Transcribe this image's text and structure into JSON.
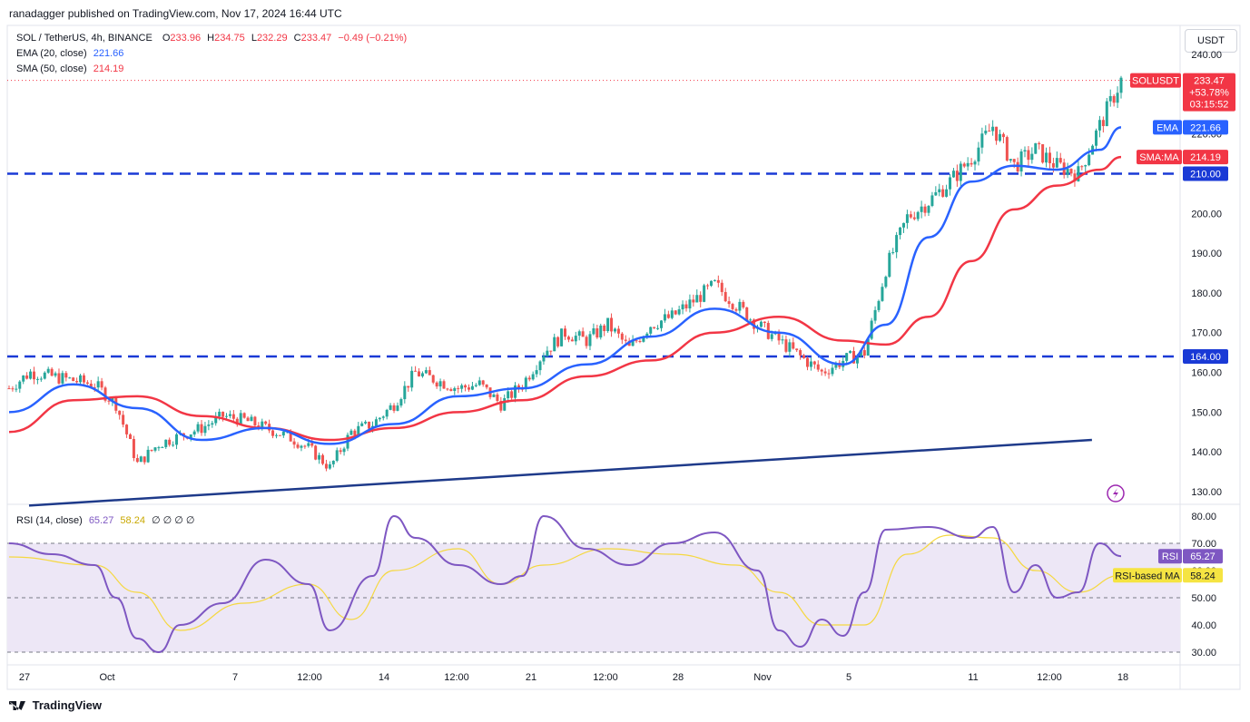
{
  "header": {
    "published": "ranadagger published on TradingView.com, Nov 17, 2024 16:44 UTC",
    "symbol": "SOL / TetherUS, 4h, BINANCE",
    "open_label": "O",
    "open": "233.96",
    "high_label": "H",
    "high": "234.75",
    "low_label": "L",
    "low": "232.29",
    "close_label": "C",
    "close": "233.47",
    "change": "−0.49 (−0.21%)"
  },
  "indicators": {
    "ema_label": "EMA (20, close)",
    "ema_value": "221.66",
    "sma_label": "SMA (50, close)",
    "sma_value": "214.19",
    "rsi_label": "RSI (14, close)",
    "rsi_value": "65.27",
    "rsi_ma_value": "58.24",
    "rsi_extra": "∅ ∅ ∅ ∅"
  },
  "currency": "USDT",
  "price_tags": {
    "symbol": "SOLUSDT",
    "price": "233.47",
    "change": "+53.78%",
    "countdown": "03:15:52",
    "ema_tag": "EMA",
    "ema": "221.66",
    "sma_tag": "SMA:MA",
    "sma": "214.19",
    "level_high": "210.00",
    "level_low": "164.00",
    "rsi_tag": "RSI",
    "rsi": "65.27",
    "rsi_ma_tag": "RSI-based MA",
    "rsi_ma": "58.24"
  },
  "footer": {
    "brand": "TradingView"
  },
  "colors": {
    "candle_up": "#26a69a",
    "candle_down": "#ef5350",
    "ema": "#2962ff",
    "sma": "#f23645",
    "level_line": "#1a3ad6",
    "trendline": "#1e3a8a",
    "rsi": "#7e57c2",
    "rsi_ma": "#f5d840",
    "rsi_band": "#ede7f6"
  },
  "chart_data": {
    "type": "line",
    "price_axis": {
      "ticks": [
        130,
        140,
        150,
        160,
        170,
        180,
        190,
        200,
        210,
        220,
        240
      ],
      "range": [
        126,
        243
      ]
    },
    "time_axis": {
      "labels": [
        "27",
        "Oct",
        "7",
        "12:00",
        "14",
        "12:00",
        "21",
        "12:00",
        "28",
        "Nov",
        "5",
        "11",
        "12:00",
        "18"
      ]
    },
    "horizontal_levels": [
      210,
      164
    ],
    "trendline": {
      "from": [
        "Sep 26",
        126.5
      ],
      "to": [
        "Nov 15",
        143
      ]
    },
    "series": [
      {
        "name": "SOL / TetherUS",
        "x": [
          "Sep 26",
          "Sep 27",
          "Sep 28",
          "Sep 29",
          "Sep 30",
          "Oct 1",
          "Oct 2",
          "Oct 3",
          "Oct 4",
          "Oct 5",
          "Oct 6",
          "Oct 7",
          "Oct 8",
          "Oct 9",
          "Oct 10",
          "Oct 11",
          "Oct 12",
          "Oct 13",
          "Oct 14",
          "Oct 15",
          "Oct 16",
          "Oct 17",
          "Oct 18",
          "Oct 19",
          "Oct 20",
          "Oct 21",
          "Oct 22",
          "Oct 23",
          "Oct 24",
          "Oct 25",
          "Oct 26",
          "Oct 27",
          "Oct 28",
          "Oct 29",
          "Oct 30",
          "Oct 31",
          "Nov 1",
          "Nov 2",
          "Nov 3",
          "Nov 4",
          "Nov 5",
          "Nov 6",
          "Nov 7",
          "Nov 8",
          "Nov 9",
          "Nov 10",
          "Nov 11",
          "Nov 12",
          "Nov 13",
          "Nov 14",
          "Nov 15",
          "Nov 16",
          "Nov 17"
        ],
        "values": [
          156,
          160,
          159,
          158,
          157,
          152,
          137,
          142,
          144,
          146,
          149,
          148,
          146,
          144,
          141,
          136,
          145,
          147,
          152,
          160,
          158,
          156,
          157,
          152,
          157,
          165,
          170,
          168,
          172,
          166,
          172,
          174,
          178,
          182,
          177,
          172,
          168,
          164,
          160,
          163,
          165,
          186,
          199,
          203,
          208,
          214,
          222,
          212,
          216,
          212,
          210,
          222,
          233.47
        ]
      },
      {
        "name": "EMA (20, close)",
        "x": [
          "Sep 26",
          "Sep 29",
          "Oct 2",
          "Oct 5",
          "Oct 8",
          "Oct 11",
          "Oct 14",
          "Oct 17",
          "Oct 20",
          "Oct 23",
          "Oct 26",
          "Oct 29",
          "Nov 1",
          "Nov 4",
          "Nov 6",
          "Nov 8",
          "Nov 10",
          "Nov 12",
          "Nov 14",
          "Nov 16",
          "Nov 17"
        ],
        "values": [
          150,
          157,
          151,
          143,
          146,
          142,
          147,
          154,
          156,
          162,
          169,
          176,
          170,
          162,
          172,
          194,
          208,
          212,
          211,
          216,
          221.66
        ]
      },
      {
        "name": "SMA (50, close)",
        "x": [
          "Sep 26",
          "Sep 29",
          "Oct 2",
          "Oct 5",
          "Oct 8",
          "Oct 11",
          "Oct 14",
          "Oct 17",
          "Oct 20",
          "Oct 23",
          "Oct 26",
          "Oct 29",
          "Nov 1",
          "Nov 4",
          "Nov 6",
          "Nov 8",
          "Nov 10",
          "Nov 12",
          "Nov 14",
          "Nov 16",
          "Nov 17"
        ],
        "values": [
          145,
          153,
          154,
          149,
          146,
          143,
          146,
          150,
          153,
          159,
          163,
          170,
          174,
          168,
          167,
          174,
          188,
          201,
          207,
          211,
          214.19
        ]
      }
    ],
    "rsi": {
      "axis": {
        "ticks": [
          30,
          40,
          50,
          60,
          70,
          80
        ],
        "range": [
          27,
          83
        ]
      },
      "bands": [
        30,
        50,
        70
      ],
      "series": [
        {
          "name": "RSI (14, close)",
          "x": [
            "Sep 26",
            "Sep 28",
            "Sep 30",
            "Oct 1",
            "Oct 2",
            "Oct 3",
            "Oct 4",
            "Oct 6",
            "Oct 8",
            "Oct 10",
            "Oct 11",
            "Oct 13",
            "Oct 14",
            "Oct 15",
            "Oct 17",
            "Oct 19",
            "Oct 20",
            "Oct 21",
            "Oct 23",
            "Oct 25",
            "Oct 27",
            "Oct 29",
            "Oct 31",
            "Nov 1",
            "Nov 2",
            "Nov 3",
            "Nov 4",
            "Nov 5",
            "Nov 6",
            "Nov 8",
            "Nov 10",
            "Nov 11",
            "Nov 12",
            "Nov 13",
            "Nov 14",
            "Nov 15",
            "Nov 16",
            "Nov 17"
          ],
          "values": [
            70,
            66,
            62,
            50,
            35,
            30,
            40,
            48,
            64,
            55,
            38,
            58,
            80,
            72,
            62,
            55,
            58,
            80,
            68,
            62,
            70,
            74,
            60,
            38,
            32,
            42,
            36,
            52,
            75,
            76,
            72,
            76,
            52,
            62,
            50,
            52,
            70,
            65.27
          ]
        },
        {
          "name": "RSI-based MA",
          "x": [
            "Sep 26",
            "Sep 30",
            "Oct 2",
            "Oct 4",
            "Oct 7",
            "Oct 10",
            "Oct 12",
            "Oct 14",
            "Oct 17",
            "Oct 19",
            "Oct 21",
            "Oct 24",
            "Oct 27",
            "Oct 30",
            "Nov 1",
            "Nov 3",
            "Nov 5",
            "Nov 7",
            "Nov 9",
            "Nov 11",
            "Nov 13",
            "Nov 15",
            "Nov 17"
          ],
          "values": [
            65,
            62,
            52,
            38,
            48,
            55,
            42,
            60,
            68,
            55,
            62,
            68,
            66,
            62,
            52,
            40,
            40,
            66,
            73,
            72,
            60,
            52,
            58.24
          ]
        }
      ]
    }
  }
}
